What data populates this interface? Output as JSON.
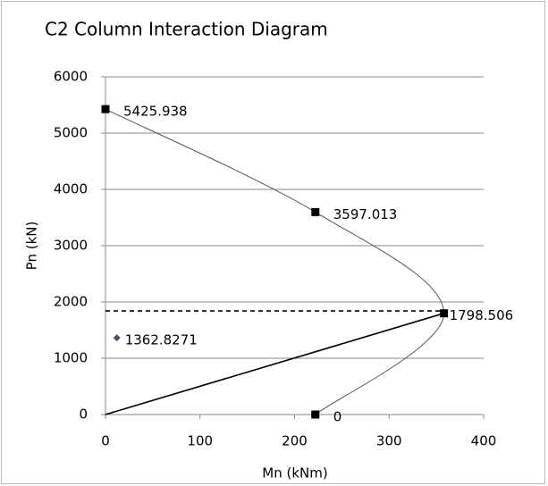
{
  "chart_data": {
    "type": "scatter",
    "title": "C2  Column Interaction Diagram",
    "x_label": "Mn (kNm)",
    "y_label": "Pn (kN)",
    "xlim": [
      0,
      400
    ],
    "xticks": [
      0,
      100,
      200,
      300,
      400
    ],
    "ylim": [
      0,
      6000
    ],
    "yticks": [
      0,
      1000,
      2000,
      3000,
      4000,
      5000,
      6000
    ],
    "grid": true,
    "series": [
      {
        "color": "#555555",
        "line": "smooth",
        "marker": "square",
        "data_labels": true,
        "x": [
          0,
          222,
          358,
          222
        ],
        "values": [
          5425.938,
          3597.013,
          1798.506,
          0
        ]
      },
      {
        "color": "#000000",
        "line": "dashed",
        "marker": "none",
        "x": [
          0,
          358
        ],
        "values": [
          1841,
          1841
        ]
      },
      {
        "color": "#000000",
        "line": "solid",
        "marker": "none",
        "x": [
          0,
          358
        ],
        "values": [
          0,
          1798.506
        ]
      },
      {
        "color": "#44546a",
        "line": "none",
        "marker": "diamond",
        "data_labels": true,
        "x": [
          12
        ],
        "values": [
          1362.8271
        ]
      }
    ]
  }
}
